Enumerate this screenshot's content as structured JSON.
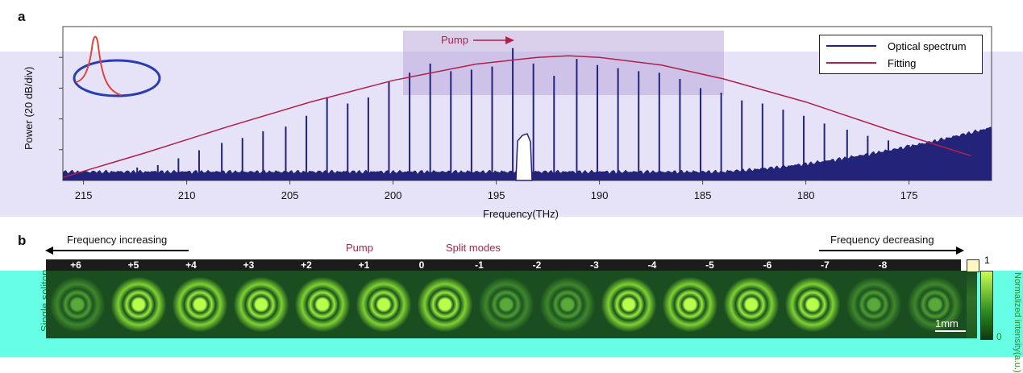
{
  "panel_a": {
    "letter": "a",
    "ylabel": "Power (20 dB/div)",
    "xlabel": "Frequency(THz)",
    "pump_label": "Pump",
    "legend": [
      {
        "label": "Optical spectrum",
        "color": "#23237a"
      },
      {
        "label": "Fitting",
        "color": "#b0214a"
      }
    ]
  },
  "panel_b": {
    "letter": "b",
    "freq_increasing": "Frequency increasing",
    "freq_decreasing": "Frequency decreasing",
    "pump_label": "Pump",
    "split_label": "Split modes",
    "row_label": "Single soliton",
    "mode_labels": [
      "+6",
      "+5",
      "+4",
      "+3",
      "+2",
      "+1",
      "0",
      "-1",
      "-2",
      "-3",
      "-4",
      "-5",
      "-6",
      "-7",
      "-8"
    ],
    "scale_bar": "1mm",
    "colorbar_top": "1",
    "colorbar_bottom": "0",
    "colorbar_label": "Normalized intensity(a.u.)"
  },
  "chart_data": {
    "type": "line",
    "title": "",
    "xlabel": "Frequency(THz)",
    "ylabel": "Power (20 dB/div)",
    "x_reversed": true,
    "xlim": [
      216,
      171
    ],
    "ylim": [
      0,
      5
    ],
    "x_ticks": [
      "215",
      "210",
      "205",
      "200",
      "195",
      "190",
      "185",
      "180",
      "175"
    ],
    "x_tick_values": [
      215,
      210,
      205,
      200,
      195,
      190,
      185,
      180,
      175
    ],
    "series": [
      {
        "name": "Optical spectrum",
        "color": "#23237a",
        "comb_lines": [
          {
            "f": 213.4,
            "p": 0.28
          },
          {
            "f": 212.4,
            "p": 0.42
          },
          {
            "f": 211.4,
            "p": 0.5
          },
          {
            "f": 210.4,
            "p": 0.72
          },
          {
            "f": 209.4,
            "p": 0.98
          },
          {
            "f": 208.3,
            "p": 1.22
          },
          {
            "f": 207.3,
            "p": 1.38
          },
          {
            "f": 206.3,
            "p": 1.6
          },
          {
            "f": 205.2,
            "p": 1.75
          },
          {
            "f": 204.2,
            "p": 2.1
          },
          {
            "f": 203.2,
            "p": 2.7
          },
          {
            "f": 202.2,
            "p": 2.5
          },
          {
            "f": 201.2,
            "p": 2.7
          },
          {
            "f": 200.2,
            "p": 3.2
          },
          {
            "f": 199.2,
            "p": 3.5
          },
          {
            "f": 198.2,
            "p": 3.8
          },
          {
            "f": 197.2,
            "p": 3.55
          },
          {
            "f": 196.2,
            "p": 3.6
          },
          {
            "f": 195.2,
            "p": 3.7
          },
          {
            "f": 194.2,
            "p": 4.3
          },
          {
            "f": 193.2,
            "p": 3.8
          },
          {
            "f": 192.2,
            "p": 3.4
          },
          {
            "f": 191.1,
            "p": 3.95
          },
          {
            "f": 190.1,
            "p": 3.75
          },
          {
            "f": 189.1,
            "p": 3.65
          },
          {
            "f": 188.1,
            "p": 3.55
          },
          {
            "f": 187.1,
            "p": 3.5
          },
          {
            "f": 186.1,
            "p": 3.3
          },
          {
            "f": 185.1,
            "p": 3.0
          },
          {
            "f": 184.1,
            "p": 2.85
          },
          {
            "f": 183.1,
            "p": 2.6
          },
          {
            "f": 182.1,
            "p": 2.5
          },
          {
            "f": 181.1,
            "p": 2.3
          },
          {
            "f": 180.1,
            "p": 2.1
          },
          {
            "f": 179.1,
            "p": 1.85
          },
          {
            "f": 178.0,
            "p": 1.65
          },
          {
            "f": 177.0,
            "p": 1.45
          },
          {
            "f": 176.0,
            "p": 1.3
          },
          {
            "f": 175.0,
            "p": 1.15
          },
          {
            "f": 174.0,
            "p": 0.9
          },
          {
            "f": 173.0,
            "p": 0.75
          }
        ]
      },
      {
        "name": "Fitting",
        "color": "#b0214a",
        "x": [
          216,
          212,
          208,
          204,
          200,
          196,
          193,
          191.5,
          190,
          187,
          184,
          180,
          176,
          172
        ],
        "y": [
          0.1,
          0.9,
          1.75,
          2.55,
          3.25,
          3.78,
          4.0,
          4.05,
          4.0,
          3.75,
          3.3,
          2.55,
          1.65,
          0.8
        ]
      }
    ]
  }
}
